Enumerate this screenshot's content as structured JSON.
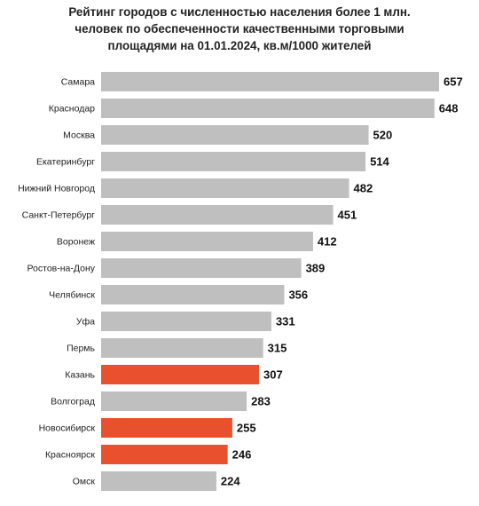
{
  "chart_data": {
    "type": "bar",
    "orientation": "horizontal",
    "title_lines": [
      "Рейтинг городов с численностью населения более 1 млн.",
      "человек по обеспеченности качественными торговыми",
      "площадями на 01.01.2024, кв.м/1000 жителей"
    ],
    "categories": [
      "Самара",
      "Краснодар",
      "Москва",
      "Екатеринбург",
      "Нижний Новгород",
      "Санкт-Петербург",
      "Воронеж",
      "Ростов-на-Дону",
      "Челябинск",
      "Уфа",
      "Пермь",
      "Казань",
      "Волгоград",
      "Новосибирск",
      "Красноярск",
      "Омск"
    ],
    "values": [
      657,
      648,
      520,
      514,
      482,
      451,
      412,
      389,
      356,
      331,
      315,
      307,
      283,
      255,
      246,
      224
    ],
    "highlighted": [
      "Казань",
      "Новосибирск",
      "Красноярск"
    ],
    "colors": {
      "default": "#bfbfbf",
      "highlight": "#e8502e",
      "label": "#111111"
    },
    "xlim": [
      0,
      657
    ],
    "grid": false,
    "legend": "none"
  }
}
